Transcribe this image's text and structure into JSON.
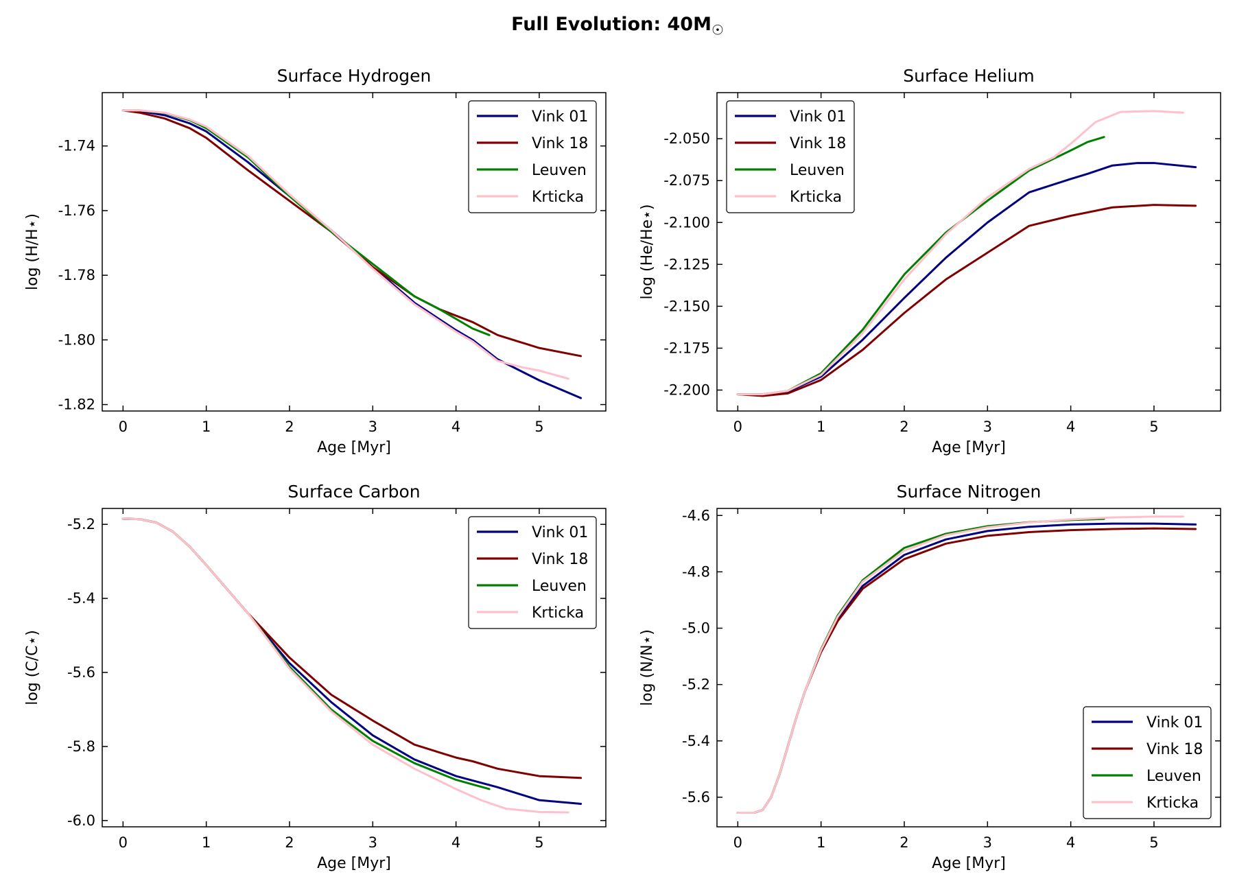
{
  "figure": {
    "title": "Full Evolution: 40M",
    "title_symbol": "☉"
  },
  "colors": {
    "Vink 01": "#000080",
    "Vink 18": "#800000",
    "Leuven": "#008000",
    "Krticka": "#ffc0cb"
  },
  "chart_data": [
    {
      "type": "line",
      "title": "Surface Hydrogen",
      "xlabel": "Age [Myr]",
      "ylabel": "log (H/H⋆)",
      "xlim": [
        -0.25,
        5.8
      ],
      "ylim": [
        -1.822,
        -1.7235
      ],
      "xticks": [
        0,
        1,
        2,
        3,
        4,
        5
      ],
      "yticks": [
        -1.82,
        -1.8,
        -1.78,
        -1.76,
        -1.74
      ],
      "ytick_labels": [
        "-1.82",
        "-1.80",
        "-1.78",
        "-1.76",
        "-1.74"
      ],
      "legend": "top-right",
      "series": [
        {
          "name": "Vink 01",
          "x": [
            0,
            0.2,
            0.5,
            0.8,
            1.0,
            1.5,
            2.0,
            2.5,
            3.0,
            3.5,
            4.0,
            4.2,
            4.5,
            5.0,
            5.5
          ],
          "y": [
            -1.729,
            -1.7292,
            -1.7305,
            -1.733,
            -1.7355,
            -1.745,
            -1.7555,
            -1.766,
            -1.7775,
            -1.7885,
            -1.797,
            -1.8,
            -1.806,
            -1.8125,
            -1.818
          ]
        },
        {
          "name": "Vink 18",
          "x": [
            0,
            0.2,
            0.5,
            0.8,
            1.0,
            1.5,
            2.0,
            2.5,
            3.0,
            3.5,
            3.8,
            4.0,
            4.2,
            4.5,
            5.0,
            5.5
          ],
          "y": [
            -1.729,
            -1.7297,
            -1.7315,
            -1.7345,
            -1.7375,
            -1.7475,
            -1.757,
            -1.7665,
            -1.7775,
            -1.7865,
            -1.7905,
            -1.7925,
            -1.7945,
            -1.7985,
            -1.8025,
            -1.805
          ]
        },
        {
          "name": "Leuven",
          "x": [
            0,
            0.2,
            0.5,
            0.8,
            1.0,
            1.5,
            2.0,
            2.5,
            3.0,
            3.5,
            3.8,
            4.0,
            4.2,
            4.4
          ],
          "y": [
            -1.729,
            -1.729,
            -1.7298,
            -1.732,
            -1.7345,
            -1.7435,
            -1.7555,
            -1.7665,
            -1.7765,
            -1.7865,
            -1.7905,
            -1.7935,
            -1.7965,
            -1.7985
          ]
        },
        {
          "name": "Krticka",
          "x": [
            0,
            0.2,
            0.5,
            0.8,
            1.0,
            1.5,
            2.0,
            2.5,
            3.0,
            3.5,
            4.0,
            4.2,
            4.5,
            4.8,
            5.0,
            5.35
          ],
          "y": [
            -1.729,
            -1.729,
            -1.7297,
            -1.7318,
            -1.734,
            -1.743,
            -1.755,
            -1.766,
            -1.778,
            -1.789,
            -1.7975,
            -1.8005,
            -1.8065,
            -1.8085,
            -1.8095,
            -1.812
          ]
        }
      ]
    },
    {
      "type": "line",
      "title": "Surface Helium",
      "xlabel": "Age [Myr]",
      "ylabel": "log (He/He⋆)",
      "xlim": [
        -0.25,
        5.8
      ],
      "ylim": [
        -2.2125,
        -2.0225
      ],
      "xticks": [
        0,
        1,
        2,
        3,
        4,
        5
      ],
      "yticks": [
        -2.2,
        -2.175,
        -2.15,
        -2.125,
        -2.1,
        -2.075,
        -2.05
      ],
      "ytick_labels": [
        "-2.200",
        "-2.175",
        "-2.150",
        "-2.125",
        "-2.100",
        "-2.075",
        "-2.050"
      ],
      "legend": "top-left",
      "series": [
        {
          "name": "Vink 01",
          "x": [
            0,
            0.3,
            0.6,
            1.0,
            1.5,
            2.0,
            2.5,
            3.0,
            3.5,
            4.0,
            4.2,
            4.5,
            4.8,
            5.0,
            5.5
          ],
          "y": [
            -2.2025,
            -2.2025,
            -2.201,
            -2.192,
            -2.17,
            -2.145,
            -2.121,
            -2.1,
            -2.082,
            -2.074,
            -2.071,
            -2.066,
            -2.0645,
            -2.0645,
            -2.067
          ]
        },
        {
          "name": "Vink 18",
          "x": [
            0,
            0.3,
            0.6,
            1.0,
            1.5,
            2.0,
            2.5,
            3.0,
            3.5,
            4.0,
            4.5,
            5.0,
            5.5
          ],
          "y": [
            -2.2025,
            -2.2035,
            -2.202,
            -2.194,
            -2.176,
            -2.154,
            -2.134,
            -2.118,
            -2.102,
            -2.096,
            -2.091,
            -2.0895,
            -2.09
          ]
        },
        {
          "name": "Leuven",
          "x": [
            0,
            0.3,
            0.6,
            1.0,
            1.5,
            2.0,
            2.5,
            3.0,
            3.5,
            4.0,
            4.2,
            4.4
          ],
          "y": [
            -2.2025,
            -2.2025,
            -2.2005,
            -2.19,
            -2.164,
            -2.131,
            -2.106,
            -2.087,
            -2.069,
            -2.057,
            -2.052,
            -2.049
          ]
        },
        {
          "name": "Krticka",
          "x": [
            0,
            0.3,
            0.6,
            1.0,
            1.5,
            2.0,
            2.5,
            3.0,
            3.5,
            3.8,
            4.0,
            4.3,
            4.6,
            5.0,
            5.35
          ],
          "y": [
            -2.2025,
            -2.2025,
            -2.2005,
            -2.191,
            -2.166,
            -2.134,
            -2.107,
            -2.085,
            -2.068,
            -2.061,
            -2.053,
            -2.04,
            -2.034,
            -2.0335,
            -2.0345
          ]
        }
      ]
    },
    {
      "type": "line",
      "title": "Surface Carbon",
      "xlabel": "Age [Myr]",
      "ylabel": "log (C/C⋆)",
      "xlim": [
        -0.25,
        5.8
      ],
      "ylim": [
        -6.017,
        -5.157
      ],
      "xticks": [
        0,
        1,
        2,
        3,
        4,
        5
      ],
      "yticks": [
        -6.0,
        -5.8,
        -5.6,
        -5.4,
        -5.2
      ],
      "ytick_labels": [
        "-6.0",
        "-5.8",
        "-5.6",
        "-5.4",
        "-5.2"
      ],
      "legend": "top-right",
      "series": [
        {
          "name": "Vink 01",
          "x": [
            0,
            0.2,
            0.4,
            0.6,
            0.8,
            1.0,
            1.5,
            2.0,
            2.5,
            3.0,
            3.5,
            4.0,
            4.5,
            5.0,
            5.5
          ],
          "y": [
            -5.185,
            -5.186,
            -5.195,
            -5.22,
            -5.26,
            -5.31,
            -5.44,
            -5.575,
            -5.68,
            -5.77,
            -5.835,
            -5.88,
            -5.91,
            -5.945,
            -5.955
          ]
        },
        {
          "name": "Vink 18",
          "x": [
            0,
            0.2,
            0.4,
            0.6,
            0.8,
            1.0,
            1.5,
            2.0,
            2.5,
            3.0,
            3.5,
            4.0,
            4.2,
            4.5,
            5.0,
            5.5
          ],
          "y": [
            -5.185,
            -5.186,
            -5.195,
            -5.22,
            -5.26,
            -5.31,
            -5.44,
            -5.56,
            -5.66,
            -5.73,
            -5.795,
            -5.83,
            -5.84,
            -5.86,
            -5.88,
            -5.885
          ]
        },
        {
          "name": "Leuven",
          "x": [
            0,
            0.2,
            0.4,
            0.6,
            0.8,
            1.0,
            1.5,
            2.0,
            2.5,
            3.0,
            3.5,
            4.0,
            4.4
          ],
          "y": [
            -5.185,
            -5.186,
            -5.195,
            -5.22,
            -5.26,
            -5.31,
            -5.44,
            -5.585,
            -5.7,
            -5.785,
            -5.845,
            -5.89,
            -5.915
          ]
        },
        {
          "name": "Krticka",
          "x": [
            0,
            0.2,
            0.4,
            0.6,
            0.8,
            1.0,
            1.5,
            2.0,
            2.5,
            3.0,
            3.5,
            4.0,
            4.3,
            4.6,
            5.0,
            5.35
          ],
          "y": [
            -5.185,
            -5.186,
            -5.195,
            -5.22,
            -5.26,
            -5.31,
            -5.44,
            -5.59,
            -5.705,
            -5.795,
            -5.86,
            -5.915,
            -5.945,
            -5.968,
            -5.977,
            -5.978
          ]
        }
      ]
    },
    {
      "type": "line",
      "title": "Surface Nitrogen",
      "xlabel": "Age [Myr]",
      "ylabel": "log (N/N⋆)",
      "xlim": [
        -0.25,
        5.8
      ],
      "ylim": [
        -5.705,
        -4.575
      ],
      "xticks": [
        0,
        1,
        2,
        3,
        4,
        5
      ],
      "yticks": [
        -5.6,
        -5.4,
        -5.2,
        -5.0,
        -4.8,
        -4.6
      ],
      "ytick_labels": [
        "-5.6",
        "-5.4",
        "-5.2",
        "-5.0",
        "-4.8",
        "-4.6"
      ],
      "legend": "bottom-right",
      "series": [
        {
          "name": "Vink 01",
          "x": [
            0,
            0.2,
            0.3,
            0.4,
            0.5,
            0.6,
            0.7,
            0.8,
            1.0,
            1.2,
            1.5,
            2.0,
            2.5,
            3.0,
            3.5,
            4.0,
            4.5,
            5.0,
            5.5
          ],
          "y": [
            -5.655,
            -5.655,
            -5.645,
            -5.6,
            -5.52,
            -5.42,
            -5.32,
            -5.23,
            -5.08,
            -4.97,
            -4.85,
            -4.74,
            -4.685,
            -4.655,
            -4.64,
            -4.632,
            -4.629,
            -4.629,
            -4.632
          ]
        },
        {
          "name": "Vink 18",
          "x": [
            0,
            0.2,
            0.3,
            0.4,
            0.5,
            0.6,
            0.7,
            0.8,
            1.0,
            1.2,
            1.5,
            2.0,
            2.5,
            3.0,
            3.5,
            4.0,
            4.5,
            5.0,
            5.5
          ],
          "y": [
            -5.655,
            -5.655,
            -5.645,
            -5.6,
            -5.52,
            -5.42,
            -5.32,
            -5.23,
            -5.085,
            -4.975,
            -4.86,
            -4.755,
            -4.7,
            -4.672,
            -4.659,
            -4.652,
            -4.648,
            -4.646,
            -4.648
          ]
        },
        {
          "name": "Leuven",
          "x": [
            0,
            0.2,
            0.3,
            0.4,
            0.5,
            0.6,
            0.7,
            0.8,
            1.0,
            1.2,
            1.5,
            2.0,
            2.5,
            3.0,
            3.5,
            4.0,
            4.4
          ],
          "y": [
            -5.655,
            -5.655,
            -5.645,
            -5.6,
            -5.52,
            -5.42,
            -5.32,
            -5.23,
            -5.075,
            -4.955,
            -4.83,
            -4.715,
            -4.665,
            -4.638,
            -4.624,
            -4.616,
            -4.612
          ]
        },
        {
          "name": "Krticka",
          "x": [
            0,
            0.2,
            0.3,
            0.4,
            0.5,
            0.6,
            0.7,
            0.8,
            1.0,
            1.2,
            1.5,
            2.0,
            2.5,
            3.0,
            3.5,
            4.0,
            4.5,
            5.0,
            5.35
          ],
          "y": [
            -5.655,
            -5.655,
            -5.645,
            -5.6,
            -5.52,
            -5.42,
            -5.32,
            -5.23,
            -5.078,
            -4.96,
            -4.835,
            -4.725,
            -4.67,
            -4.642,
            -4.625,
            -4.614,
            -4.607,
            -4.604,
            -4.604
          ]
        }
      ]
    }
  ]
}
